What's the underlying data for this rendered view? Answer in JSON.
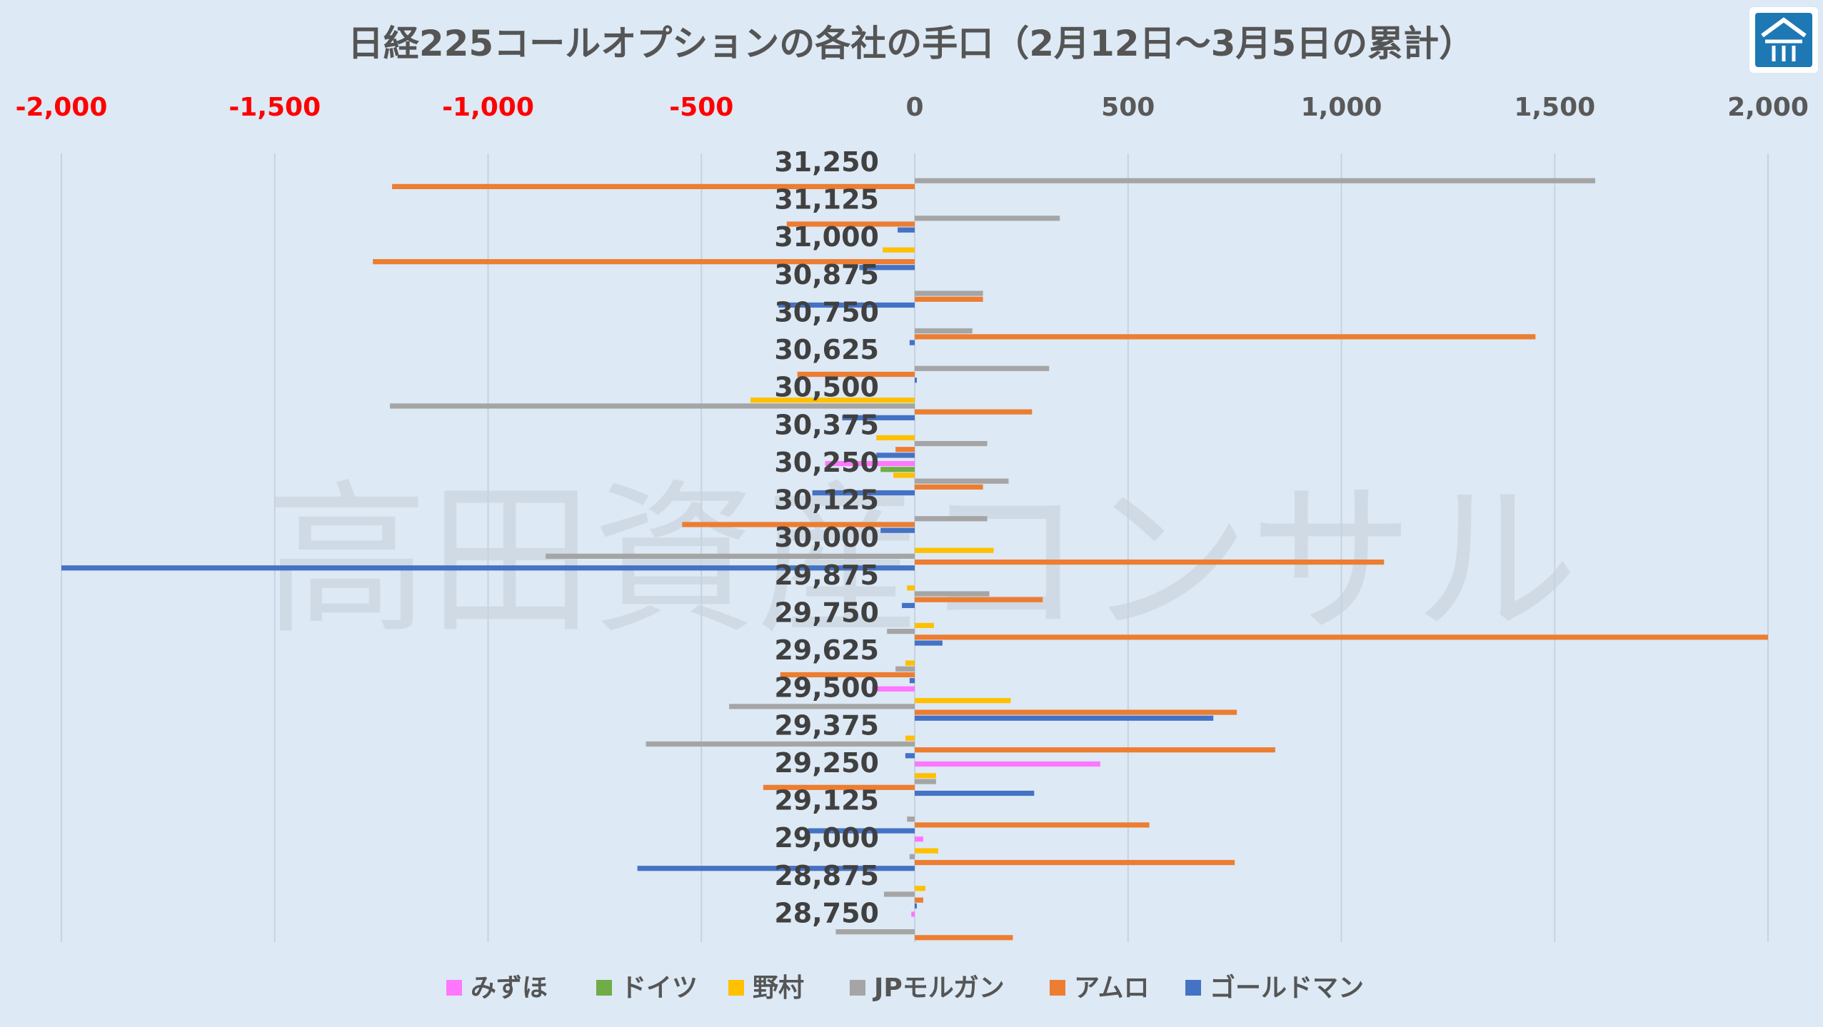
{
  "chart_data": {
    "type": "bar",
    "orientation": "horizontal",
    "title": "日経225コールオプションの各社の手口（2月12日～3月5日の累計）",
    "watermark": "高田資産コンサル",
    "xlim": [
      -2000,
      2000
    ],
    "x_ticks": [
      -2000,
      -1500,
      -1000,
      -500,
      0,
      500,
      1000,
      1500,
      2000
    ],
    "x_tick_labels": [
      "-2,000",
      "-1,500",
      "-1,000",
      "-500",
      "0",
      "500",
      "1,000",
      "1,500",
      "2,000"
    ],
    "axis_position": "top",
    "negative_tick_color": "#ff0000",
    "positive_tick_color": "#595959",
    "grid": "vertical",
    "legend_position": "bottom",
    "categories": [
      "31,250",
      "31,125",
      "31,000",
      "30,875",
      "30,750",
      "30,625",
      "30,500",
      "30,375",
      "30,250",
      "30,125",
      "30,000",
      "29,875",
      "29,750",
      "29,625",
      "29,500",
      "29,375",
      "29,250",
      "29,125",
      "29,000",
      "28,875",
      "28,750"
    ],
    "series": [
      {
        "name": "みずほ",
        "color": "#ff77ff",
        "values": [
          0,
          0,
          0,
          0,
          0,
          0,
          0,
          0,
          -210,
          0,
          0,
          0,
          0,
          0,
          -100,
          0,
          435,
          0,
          20,
          0,
          -8
        ]
      },
      {
        "name": "ドイツ",
        "color": "#70ad47",
        "values": [
          0,
          0,
          0,
          0,
          0,
          0,
          0,
          0,
          -80,
          0,
          0,
          0,
          0,
          0,
          0,
          0,
          0,
          0,
          0,
          0,
          0
        ]
      },
      {
        "name": "野村",
        "color": "#ffc000",
        "values": [
          0,
          0,
          -75,
          0,
          0,
          0,
          -385,
          -90,
          -50,
          0,
          185,
          -18,
          45,
          -22,
          225,
          -22,
          50,
          0,
          55,
          25,
          0
        ]
      },
      {
        "name": "JPモルガン",
        "color": "#a5a5a5",
        "values": [
          1595,
          340,
          0,
          160,
          135,
          315,
          -1230,
          170,
          220,
          170,
          -865,
          175,
          -65,
          -45,
          -435,
          -630,
          50,
          -18,
          -12,
          -72,
          -185
        ]
      },
      {
        "name": "アムロ",
        "color": "#ed7d31",
        "values": [
          -1225,
          -300,
          -1270,
          160,
          1455,
          -275,
          275,
          -45,
          160,
          -545,
          1100,
          300,
          2000,
          -315,
          755,
          845,
          -355,
          550,
          750,
          20,
          230
        ]
      },
      {
        "name": "ゴールドマン",
        "color": "#4472c4",
        "values": [
          0,
          -40,
          -130,
          -320,
          -12,
          5,
          -170,
          -90,
          -240,
          -80,
          -2000,
          -30,
          65,
          -12,
          700,
          -22,
          280,
          -250,
          -650,
          5,
          0
        ]
      }
    ]
  }
}
